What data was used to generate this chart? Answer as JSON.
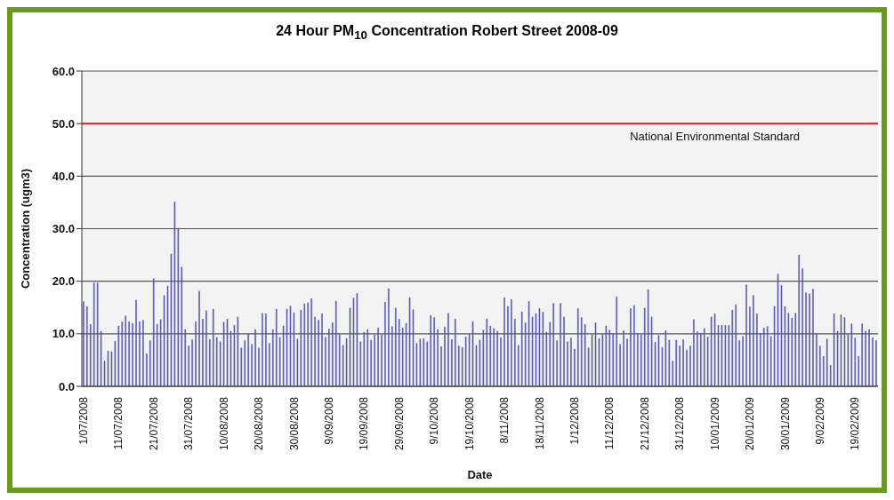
{
  "chart_data": {
    "type": "bar",
    "title": "24 Hour PM$_{10}$ Concentration Robert Street 2008-09",
    "xlabel": "Date",
    "ylabel": "Concentration (ugm3)",
    "categories": [
      "1/07/2008",
      null,
      null,
      null,
      null,
      null,
      null,
      null,
      null,
      null,
      "11/07/2008",
      null,
      null,
      null,
      null,
      null,
      null,
      null,
      null,
      null,
      "21/07/2008",
      null,
      null,
      null,
      null,
      null,
      null,
      null,
      null,
      null,
      "31/07/2008",
      null,
      null,
      null,
      null,
      null,
      null,
      null,
      null,
      null,
      "10/08/2008",
      null,
      null,
      null,
      null,
      null,
      null,
      null,
      null,
      null,
      "20/08/2008",
      null,
      null,
      null,
      null,
      null,
      null,
      null,
      null,
      null,
      "30/08/2008",
      null,
      null,
      null,
      null,
      null,
      null,
      null,
      null,
      null,
      "9/09/2008",
      null,
      null,
      null,
      null,
      null,
      null,
      null,
      null,
      null,
      "19/09/2008",
      null,
      null,
      null,
      null,
      null,
      null,
      null,
      null,
      null,
      "29/09/2008",
      null,
      null,
      null,
      null,
      null,
      null,
      null,
      null,
      null,
      "9/10/2008",
      null,
      null,
      null,
      null,
      null,
      null,
      null,
      null,
      null,
      "19/10/2008",
      null,
      null,
      null,
      null,
      null,
      null,
      null,
      null,
      null,
      "8/11/2008",
      null,
      null,
      null,
      null,
      null,
      null,
      null,
      null,
      null,
      "18/11/2008",
      null,
      null,
      null,
      null,
      null,
      null,
      null,
      null,
      null,
      "1/12/2008",
      null,
      null,
      null,
      null,
      null,
      null,
      null,
      null,
      null,
      "11/12/2008",
      null,
      null,
      null,
      null,
      null,
      null,
      null,
      null,
      null,
      "21/12/2008",
      null,
      null,
      null,
      null,
      null,
      null,
      null,
      null,
      null,
      "31/12/2008",
      null,
      null,
      null,
      null,
      null,
      null,
      null,
      null,
      null,
      "10/01/2009",
      null,
      null,
      null,
      null,
      null,
      null,
      null,
      null,
      null,
      "20/01/2009",
      null,
      null,
      null,
      null,
      null,
      null,
      null,
      null,
      null,
      "30/01/2009",
      null,
      null,
      null,
      null,
      null,
      null,
      null,
      null,
      null,
      "9/02/2009",
      null,
      null,
      null,
      null,
      null,
      null,
      null,
      null,
      null,
      "19/02/2009",
      null,
      null,
      null,
      null,
      null,
      null
    ],
    "values": [
      16.1,
      15.2,
      11.8,
      19.7,
      19.7,
      10.5,
      4.8,
      6.7,
      6.6,
      8.6,
      11.5,
      12.3,
      13.4,
      12.3,
      12.0,
      16.4,
      12.3,
      12.6,
      6.2,
      8.7,
      20.5,
      11.8,
      12.7,
      17.3,
      19.1,
      25.2,
      35.1,
      30.1,
      22.7,
      10.8,
      7.7,
      8.9,
      12.3,
      18.1,
      12.8,
      14.4,
      8.9,
      14.7,
      9.3,
      8.5,
      12.2,
      12.8,
      10.5,
      11.6,
      13.2,
      7.3,
      8.7,
      9.9,
      8.0,
      10.8,
      7.3,
      13.9,
      13.8,
      8.2,
      10.8,
      14.7,
      9.3,
      11.5,
      14.7,
      15.3,
      14.0,
      9.0,
      14.5,
      15.7,
      15.9,
      16.7,
      13.2,
      12.6,
      13.8,
      9.3,
      10.9,
      12.1,
      16.2,
      9.9,
      7.8,
      9.1,
      14.9,
      16.8,
      17.7,
      8.5,
      10.3,
      10.8,
      8.8,
      9.8,
      11.1,
      9.8,
      16.0,
      18.6,
      11.4,
      14.9,
      12.8,
      11.1,
      12.0,
      16.9,
      14.6,
      8.2,
      9.0,
      9.1,
      8.5,
      13.5,
      13.1,
      10.8,
      7.6,
      11.3,
      13.9,
      8.9,
      12.8,
      7.7,
      7.4,
      9.4,
      9.9,
      12.3,
      7.8,
      8.8,
      10.7,
      12.8,
      11.5,
      11.0,
      10.5,
      9.3,
      16.9,
      15.2,
      16.5,
      12.8,
      7.8,
      14.2,
      12.1,
      16.2,
      13.2,
      13.8,
      14.8,
      14.1,
      10.3,
      12.2,
      15.8,
      8.7,
      15.8,
      13.2,
      8.5,
      9.2,
      7.1,
      14.8,
      13.1,
      11.8,
      7.3,
      9.8,
      12.1,
      9.1,
      9.9,
      11.5,
      10.7,
      10.0,
      17.0,
      8.0,
      10.6,
      9.0,
      14.8,
      15.4,
      10.0,
      9.8,
      14.9,
      18.4,
      13.2,
      8.4,
      9.7,
      7.4,
      10.6,
      8.8,
      4.8,
      8.8,
      7.7,
      8.9,
      6.9,
      7.7,
      12.7,
      10.4,
      10.1,
      11.0,
      9.4,
      13.2,
      13.8,
      11.6,
      11.6,
      11.6,
      11.6,
      14.5,
      15.5,
      8.7,
      9.5,
      19.3,
      15.1,
      17.3,
      13.8,
      10.1,
      11.1,
      11.4,
      9.5,
      15.2,
      21.4,
      19.2,
      15.2,
      13.9,
      13.0,
      13.9,
      25.0,
      22.4,
      17.8,
      17.6,
      18.5,
      10.0,
      7.7,
      5.7,
      9.0,
      4.0,
      13.8,
      10.5,
      13.6,
      13.1,
      9.9,
      11.9,
      9.2,
      5.7,
      11.9,
      10.5,
      10.8,
      9.3,
      8.7
    ],
    "color": "#5252a8",
    "ylim": [
      0,
      60
    ],
    "yticks": [
      {
        "value": 0,
        "label": "0.0"
      },
      {
        "value": 10,
        "label": "10.0"
      },
      {
        "value": 20,
        "label": "20.0"
      },
      {
        "value": 30,
        "label": "30.0"
      },
      {
        "value": 40,
        "label": "40.0"
      },
      {
        "value": 50,
        "label": "50.0"
      },
      {
        "value": 60,
        "label": "60.0"
      }
    ],
    "grid": "y",
    "ref_lines": [
      {
        "axis": "y",
        "value": 50,
        "label": "National Environmental Standard",
        "color": "#d22a2a"
      }
    ]
  }
}
